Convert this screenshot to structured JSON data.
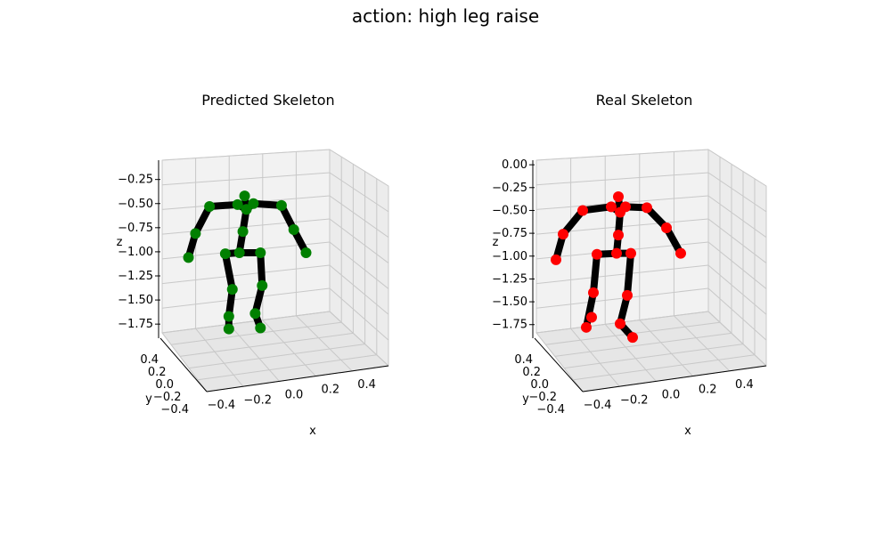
{
  "figure": {
    "title": "action: high leg raise"
  },
  "colors": {
    "bone": "#000000",
    "predicted_joint": "#008000",
    "real_joint": "#ff0000"
  },
  "chart_data": [
    {
      "type": "scatter",
      "title": "Predicted Skeleton",
      "xlabel": "x",
      "ylabel": "y",
      "zlabel": "z",
      "x_ticks": [
        "−0.4",
        "−0.2",
        "0.0",
        "0.2",
        "0.4"
      ],
      "y_ticks": [
        "0.4",
        "0.2",
        "0.0",
        "−0.2",
        "−0.4"
      ],
      "z_ticks": [
        "−0.25",
        "−0.50",
        "−0.75",
        "−1.00",
        "−1.25",
        "−1.50",
        "−1.75"
      ],
      "xlim": [
        -0.5,
        0.5
      ],
      "zlim": [
        -1.85,
        -0.05
      ],
      "joint_color": "#008000",
      "joints": [
        {
          "x": -0.02,
          "z": -0.42
        },
        {
          "x": -0.01,
          "z": -0.56
        },
        {
          "x": -0.03,
          "z": -0.79
        },
        {
          "x": -0.05,
          "z": -1.01
        },
        {
          "x": -0.13,
          "z": -1.02
        },
        {
          "x": 0.07,
          "z": -1.01
        },
        {
          "x": -0.09,
          "z": -1.39
        },
        {
          "x": 0.08,
          "z": -1.35
        },
        {
          "x": -0.11,
          "z": -1.67
        },
        {
          "x": 0.04,
          "z": -1.64
        },
        {
          "x": -0.11,
          "z": -1.8
        },
        {
          "x": 0.07,
          "z": -1.79
        },
        {
          "x": -0.06,
          "z": -0.51
        },
        {
          "x": 0.03,
          "z": -0.5
        },
        {
          "x": -0.22,
          "z": -0.53
        },
        {
          "x": 0.19,
          "z": -0.52
        },
        {
          "x": -0.3,
          "z": -0.81
        },
        {
          "x": 0.26,
          "z": -0.77
        },
        {
          "x": -0.34,
          "z": -1.06
        },
        {
          "x": 0.33,
          "z": -1.01
        }
      ],
      "bones": [
        [
          0,
          1
        ],
        [
          1,
          2
        ],
        [
          2,
          3
        ],
        [
          3,
          4
        ],
        [
          3,
          5
        ],
        [
          4,
          6
        ],
        [
          6,
          8
        ],
        [
          8,
          10
        ],
        [
          5,
          7
        ],
        [
          7,
          9
        ],
        [
          9,
          11
        ],
        [
          1,
          12
        ],
        [
          1,
          13
        ],
        [
          12,
          14
        ],
        [
          13,
          15
        ],
        [
          14,
          16
        ],
        [
          16,
          18
        ],
        [
          15,
          17
        ],
        [
          17,
          19
        ]
      ]
    },
    {
      "type": "scatter",
      "title": "Real Skeleton",
      "xlabel": "x",
      "ylabel": "y",
      "zlabel": "z",
      "x_ticks": [
        "−0.4",
        "−0.2",
        "0.0",
        "0.2",
        "0.4"
      ],
      "y_ticks": [
        "0.4",
        "0.2",
        "0.0",
        "−0.2",
        "−0.4"
      ],
      "z_ticks": [
        "0.00",
        "−0.25",
        "−0.50",
        "−0.75",
        "−1.00",
        "−1.25",
        "−1.50",
        "−1.75"
      ],
      "xlim": [
        -0.5,
        0.5
      ],
      "zlim": [
        -1.85,
        0.05
      ],
      "joint_color": "#ff0000",
      "joints": [
        {
          "x": -0.03,
          "z": -0.35
        },
        {
          "x": -0.02,
          "z": -0.52
        },
        {
          "x": -0.03,
          "z": -0.77
        },
        {
          "x": -0.04,
          "z": -0.97
        },
        {
          "x": -0.15,
          "z": -0.98
        },
        {
          "x": 0.04,
          "z": -0.97
        },
        {
          "x": -0.17,
          "z": -1.4
        },
        {
          "x": 0.02,
          "z": -1.43
        },
        {
          "x": -0.21,
          "z": -1.78
        },
        {
          "x": -0.02,
          "z": -1.74
        },
        {
          "x": -0.18,
          "z": -1.67
        },
        {
          "x": 0.05,
          "z": -1.89
        },
        {
          "x": -0.07,
          "z": -0.46
        },
        {
          "x": 0.01,
          "z": -0.46
        },
        {
          "x": -0.23,
          "z": -0.5
        },
        {
          "x": 0.13,
          "z": -0.47
        },
        {
          "x": -0.34,
          "z": -0.76
        },
        {
          "x": 0.24,
          "z": -0.69
        },
        {
          "x": -0.38,
          "z": -1.04
        },
        {
          "x": 0.32,
          "z": -0.97
        }
      ],
      "bones": [
        [
          0,
          1
        ],
        [
          1,
          2
        ],
        [
          2,
          3
        ],
        [
          3,
          4
        ],
        [
          3,
          5
        ],
        [
          4,
          6
        ],
        [
          6,
          8
        ],
        [
          5,
          7
        ],
        [
          7,
          9
        ],
        [
          9,
          11
        ],
        [
          1,
          12
        ],
        [
          1,
          13
        ],
        [
          12,
          14
        ],
        [
          13,
          15
        ],
        [
          14,
          16
        ],
        [
          16,
          18
        ],
        [
          15,
          17
        ],
        [
          17,
          19
        ]
      ]
    }
  ]
}
